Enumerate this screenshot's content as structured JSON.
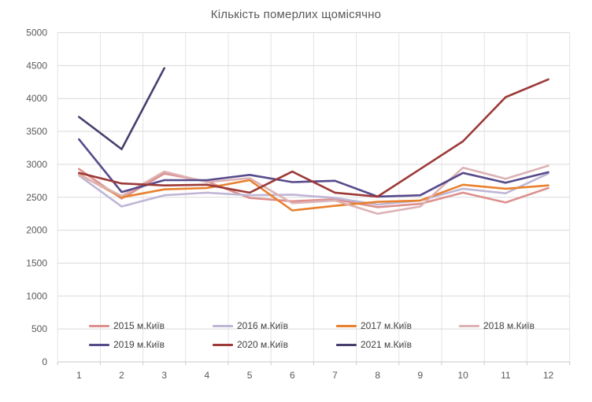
{
  "title": "Кількість померлих щомісячно",
  "chart_data": {
    "type": "line",
    "title": "Кількість померлих щомісячно",
    "xlabel": "",
    "ylabel": "",
    "x_ticks": [
      1,
      2,
      3,
      4,
      5,
      6,
      7,
      8,
      9,
      10,
      11,
      12
    ],
    "y_ticks": [
      0,
      500,
      1000,
      1500,
      2000,
      2500,
      3000,
      3500,
      4000,
      4500,
      5000
    ],
    "ylim": [
      0,
      5000
    ],
    "grid": true,
    "legend_position": "inside-bottom-left",
    "series": [
      {
        "name": "2015 м.Київ",
        "color": "#dd908d",
        "values": [
          2930,
          2480,
          2860,
          2740,
          2490,
          2440,
          2470,
          2350,
          2400,
          2570,
          2420,
          2640
        ]
      },
      {
        "name": "2016 м.Київ",
        "color": "#bfb6d6",
        "values": [
          2830,
          2360,
          2530,
          2570,
          2530,
          2540,
          2490,
          2390,
          2450,
          2630,
          2560,
          2860
        ]
      },
      {
        "name": "2017 м.Київ",
        "color": "#e8812d",
        "values": [
          2850,
          2500,
          2620,
          2640,
          2760,
          2300,
          2370,
          2430,
          2450,
          2690,
          2630,
          2680
        ]
      },
      {
        "name": "2018 м.Київ",
        "color": "#ddb2b5",
        "values": [
          2840,
          2520,
          2890,
          2730,
          2790,
          2410,
          2450,
          2250,
          2360,
          2950,
          2780,
          2980
        ]
      },
      {
        "name": "2019 м.Київ",
        "color": "#574a8b",
        "values": [
          3380,
          2580,
          2760,
          2760,
          2840,
          2730,
          2750,
          2510,
          2530,
          2870,
          2720,
          2880
        ]
      },
      {
        "name": "2020 м.Київ",
        "color": "#9c3a38",
        "values": [
          2870,
          2710,
          2680,
          2690,
          2570,
          2890,
          2570,
          2510,
          2930,
          3350,
          4020,
          4290
        ]
      },
      {
        "name": "2021 м.Київ",
        "color": "#453f6d",
        "values": [
          3720,
          3230,
          4460,
          null,
          null,
          null,
          null,
          null,
          null,
          null,
          null,
          null
        ]
      }
    ]
  },
  "colors": {
    "background": "#ffffff",
    "title_text": "#595959",
    "axis_text": "#595959",
    "legend_text": "#404040",
    "h_gridline": "#d9d9d9",
    "v_gridline": "#e4e4e4",
    "axis_line": "#c9c9c9"
  }
}
